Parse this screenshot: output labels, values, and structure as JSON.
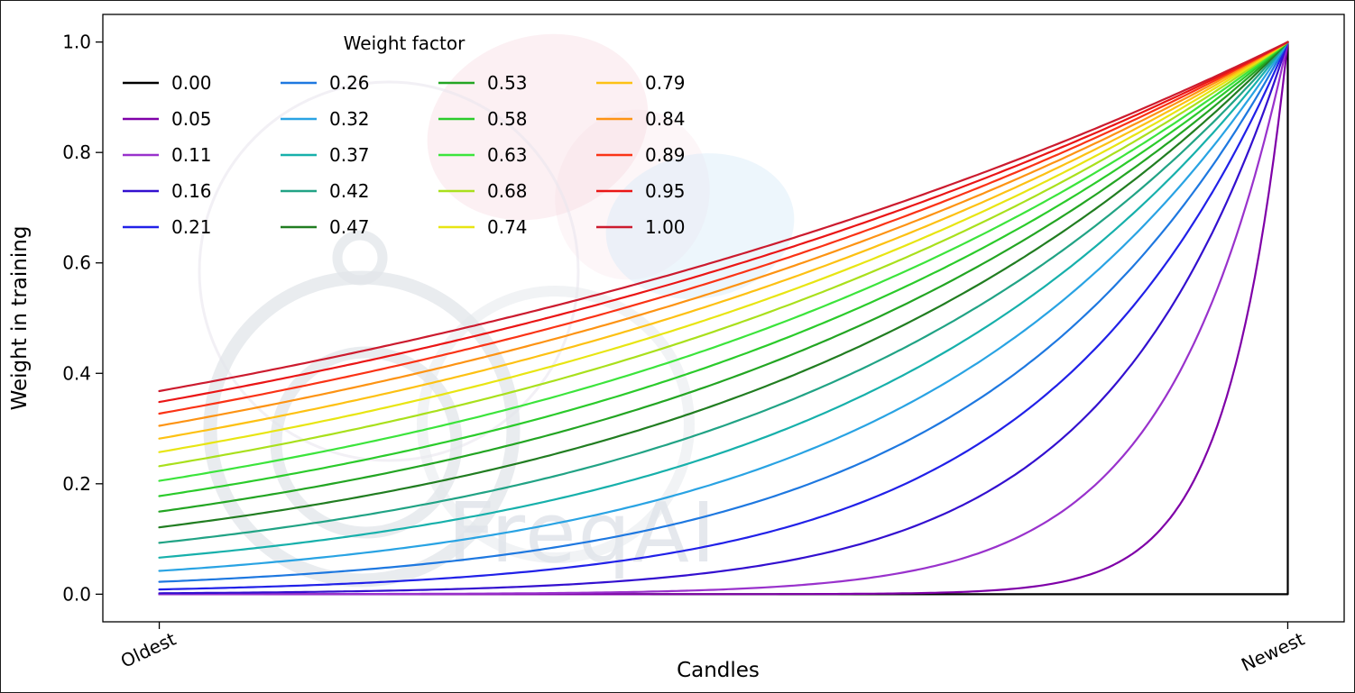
{
  "watermark": {
    "text": "FreqAI"
  },
  "chart_data": {
    "type": "line",
    "title": "",
    "xlabel": "Candles",
    "ylabel": "Weight in training",
    "legend_title": "Weight factor",
    "legend_position": "upper left",
    "legend_columns": 4,
    "legend_column_major": true,
    "grid": false,
    "x_axis": {
      "tick_labels": [
        "Oldest",
        "Newest"
      ],
      "tick_positions": [
        0,
        1
      ],
      "range": [
        -0.05,
        1.05
      ],
      "tick_rotation_deg": 25
    },
    "y_axis": {
      "tick_labels": [
        "0.0",
        "0.2",
        "0.4",
        "0.6",
        "0.8",
        "1.0"
      ],
      "tick_positions": [
        0,
        0.2,
        0.4,
        0.6,
        0.8,
        1.0
      ],
      "range": [
        -0.05,
        1.05
      ]
    },
    "curve_formula": "weight(x) = exp(-(1 - x) / factor) for x in [0,1], x=0 oldest candle, x=1 newest candle; factor = 0.00 gives weight 0 for all candles except the newest (weight 1). All curves converge to weight 1.0 at the newest candle.",
    "all_series_weight_at_newest": 1.0,
    "series": [
      {
        "label": "0.00",
        "factor": 0.0,
        "color": "#000000",
        "weight_at_oldest": 0.0
      },
      {
        "label": "0.05",
        "factor": 0.0526,
        "color": "#7f00a8",
        "weight_at_oldest": 0.0
      },
      {
        "label": "0.11",
        "factor": 0.1053,
        "color": "#9932cc",
        "weight_at_oldest": 0.0001
      },
      {
        "label": "0.16",
        "factor": 0.1579,
        "color": "#3310cf",
        "weight_at_oldest": 0.0018
      },
      {
        "label": "0.21",
        "factor": 0.2105,
        "color": "#2121e8",
        "weight_at_oldest": 0.0087
      },
      {
        "label": "0.26",
        "factor": 0.2632,
        "color": "#1e78e0",
        "weight_at_oldest": 0.0224
      },
      {
        "label": "0.32",
        "factor": 0.3158,
        "color": "#29a3e3",
        "weight_at_oldest": 0.0421
      },
      {
        "label": "0.37",
        "factor": 0.3684,
        "color": "#17b0ab",
        "weight_at_oldest": 0.0663
      },
      {
        "label": "0.42",
        "factor": 0.4211,
        "color": "#21a385",
        "weight_at_oldest": 0.0931
      },
      {
        "label": "0.47",
        "factor": 0.4737,
        "color": "#217d21",
        "weight_at_oldest": 0.1211
      },
      {
        "label": "0.53",
        "factor": 0.5263,
        "color": "#23a523",
        "weight_at_oldest": 0.1496
      },
      {
        "label": "0.58",
        "factor": 0.5789,
        "color": "#2bcb2b",
        "weight_at_oldest": 0.1778
      },
      {
        "label": "0.63",
        "factor": 0.6316,
        "color": "#3ce43c",
        "weight_at_oldest": 0.2053
      },
      {
        "label": "0.68",
        "factor": 0.6842,
        "color": "#a9e01c",
        "weight_at_oldest": 0.2318
      },
      {
        "label": "0.74",
        "factor": 0.7368,
        "color": "#e8e512",
        "weight_at_oldest": 0.2574
      },
      {
        "label": "0.79",
        "factor": 0.7895,
        "color": "#fdc113",
        "weight_at_oldest": 0.2817
      },
      {
        "label": "0.84",
        "factor": 0.8421,
        "color": "#fd9313",
        "weight_at_oldest": 0.305
      },
      {
        "label": "0.89",
        "factor": 0.8947,
        "color": "#fa3315",
        "weight_at_oldest": 0.3271
      },
      {
        "label": "0.95",
        "factor": 0.9474,
        "color": "#ea1515",
        "weight_at_oldest": 0.348
      },
      {
        "label": "1.00",
        "factor": 1.0,
        "color": "#cc1b2e",
        "weight_at_oldest": 0.3679
      }
    ]
  }
}
